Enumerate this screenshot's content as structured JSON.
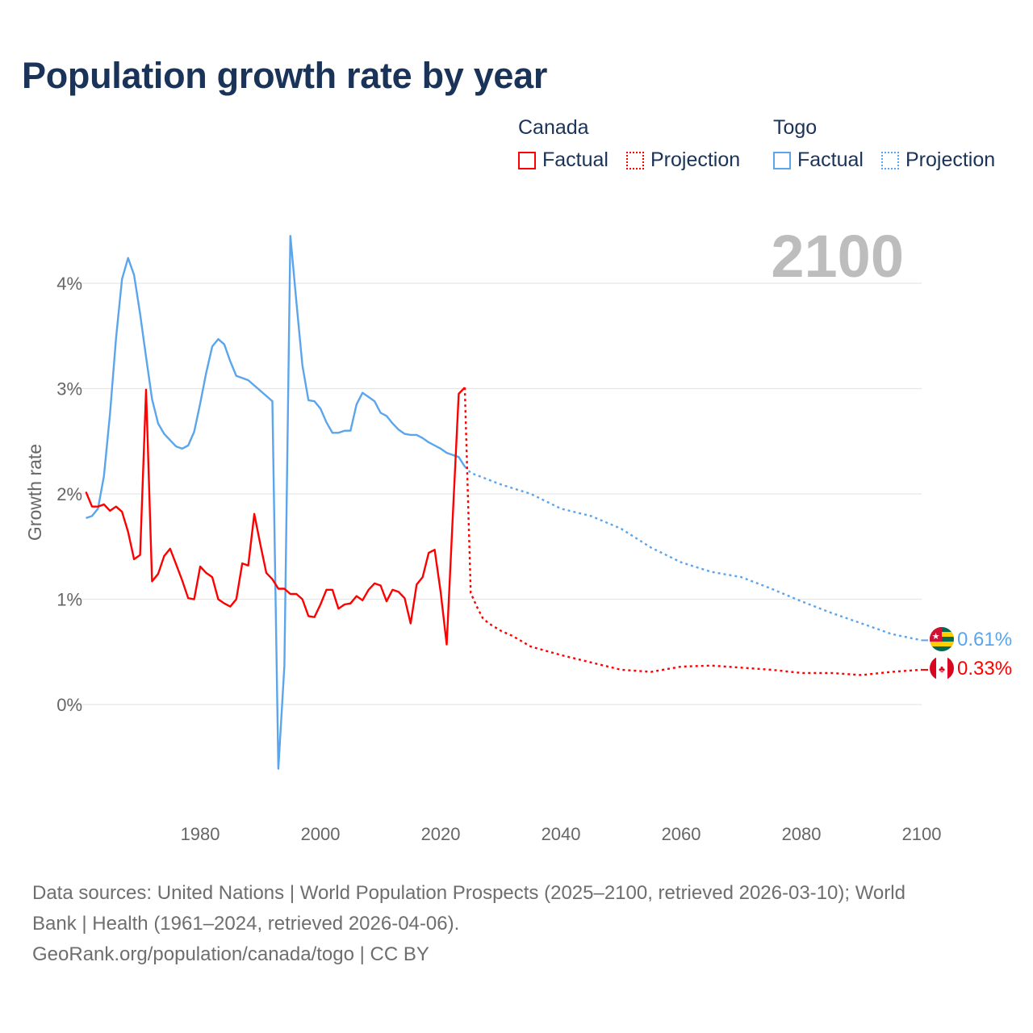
{
  "title": "Population growth rate by year",
  "legend": {
    "groups": [
      {
        "country": "Canada",
        "factual": "Factual",
        "projection": "Projection",
        "color": "#ff0000"
      },
      {
        "country": "Togo",
        "factual": "Factual",
        "projection": "Projection",
        "color": "#5aa5ec"
      }
    ]
  },
  "footer": {
    "line1": "Data sources: United Nations | World Population Prospects (2025–2100, retrieved 2026-03-10); World",
    "line2": "Bank | Health (1961–2024, retrieved 2026-04-06).",
    "line3": "GeoRank.org/population/canada/togo | CC BY"
  },
  "chart_data": {
    "type": "line",
    "title": "Population growth rate by year",
    "xlabel": "",
    "ylabel": "Growth rate",
    "current_year_label": "2100",
    "xlim": [
      1961,
      2100
    ],
    "ylim": [
      -0.9,
      4.6
    ],
    "x_ticks": [
      1980,
      2000,
      2020,
      2040,
      2060,
      2080,
      2100
    ],
    "x_tick_labels": [
      "1980",
      "2000",
      "2020",
      "2040",
      "2060",
      "2080",
      "2100"
    ],
    "y_ticks": [
      0,
      1,
      2,
      3,
      4
    ],
    "y_tick_labels": [
      "0%",
      "1%",
      "2%",
      "3%",
      "4%"
    ],
    "grid": true,
    "legend_position": "top-right",
    "series": [
      {
        "name": "Canada",
        "color": "#ff0000",
        "end_label": "0.33%",
        "flag": "canada-flag",
        "factual": {
          "x": [
            1961,
            1962,
            1963,
            1964,
            1965,
            1966,
            1967,
            1968,
            1969,
            1970,
            1971,
            1972,
            1973,
            1974,
            1975,
            1976,
            1977,
            1978,
            1979,
            1980,
            1981,
            1982,
            1983,
            1984,
            1985,
            1986,
            1987,
            1988,
            1989,
            1990,
            1991,
            1992,
            1993,
            1994,
            1995,
            1996,
            1997,
            1998,
            1999,
            2000,
            2001,
            2002,
            2003,
            2004,
            2005,
            2006,
            2007,
            2008,
            2009,
            2010,
            2011,
            2012,
            2013,
            2014,
            2015,
            2016,
            2017,
            2018,
            2019,
            2020,
            2021,
            2022,
            2023,
            2024
          ],
          "y": [
            2.02,
            1.88,
            1.88,
            1.9,
            1.84,
            1.88,
            1.83,
            1.64,
            1.38,
            1.42,
            2.99,
            1.17,
            1.24,
            1.41,
            1.48,
            1.33,
            1.18,
            1.01,
            1.0,
            1.31,
            1.25,
            1.21,
            1.0,
            0.96,
            0.93,
            1.0,
            1.34,
            1.32,
            1.81,
            1.52,
            1.25,
            1.19,
            1.1,
            1.1,
            1.05,
            1.05,
            1.0,
            0.84,
            0.83,
            0.95,
            1.09,
            1.09,
            0.91,
            0.95,
            0.96,
            1.03,
            0.99,
            1.09,
            1.15,
            1.13,
            0.98,
            1.09,
            1.07,
            1.01,
            0.77,
            1.14,
            1.21,
            1.44,
            1.47,
            1.07,
            0.57,
            1.78,
            2.95,
            3.01
          ]
        },
        "projection": {
          "x": [
            2024,
            2025,
            2026,
            2027,
            2028,
            2030,
            2032,
            2035,
            2040,
            2045,
            2050,
            2055,
            2060,
            2065,
            2070,
            2075,
            2080,
            2085,
            2090,
            2095,
            2100
          ],
          "y": [
            3.01,
            1.06,
            0.93,
            0.82,
            0.77,
            0.7,
            0.65,
            0.55,
            0.47,
            0.4,
            0.33,
            0.31,
            0.36,
            0.37,
            0.35,
            0.33,
            0.3,
            0.3,
            0.28,
            0.31,
            0.33
          ]
        }
      },
      {
        "name": "Togo",
        "color": "#5aa5ec",
        "end_label": "0.61%",
        "flag": "togo-flag",
        "factual": {
          "x": [
            1961,
            1962,
            1963,
            1964,
            1965,
            1966,
            1967,
            1968,
            1969,
            1970,
            1971,
            1972,
            1973,
            1974,
            1975,
            1976,
            1977,
            1978,
            1979,
            1980,
            1981,
            1982,
            1983,
            1984,
            1985,
            1986,
            1987,
            1988,
            1989,
            1990,
            1991,
            1992,
            1993,
            1994,
            1995,
            1996,
            1997,
            1998,
            1999,
            2000,
            2001,
            2002,
            2003,
            2004,
            2005,
            2006,
            2007,
            2008,
            2009,
            2010,
            2011,
            2012,
            2013,
            2014,
            2015,
            2016,
            2017,
            2018,
            2019,
            2020,
            2021,
            2022,
            2023,
            2024
          ],
          "y": [
            1.77,
            1.79,
            1.86,
            2.17,
            2.76,
            3.48,
            4.04,
            4.24,
            4.08,
            3.71,
            3.3,
            2.9,
            2.67,
            2.57,
            2.51,
            2.45,
            2.43,
            2.46,
            2.59,
            2.86,
            3.15,
            3.4,
            3.47,
            3.42,
            3.26,
            3.12,
            3.1,
            3.08,
            3.03,
            2.98,
            2.93,
            2.88,
            -0.61,
            0.37,
            4.45,
            3.82,
            3.22,
            2.89,
            2.88,
            2.81,
            2.68,
            2.58,
            2.58,
            2.6,
            2.6,
            2.85,
            2.96,
            2.92,
            2.88,
            2.77,
            2.74,
            2.67,
            2.61,
            2.57,
            2.56,
            2.56,
            2.53,
            2.49,
            2.46,
            2.43,
            2.39,
            2.37,
            2.35,
            2.26
          ]
        },
        "projection": {
          "x": [
            2024,
            2025,
            2030,
            2035,
            2040,
            2045,
            2050,
            2055,
            2060,
            2065,
            2070,
            2075,
            2080,
            2085,
            2090,
            2095,
            2100
          ],
          "y": [
            2.26,
            2.2,
            2.09,
            2.0,
            1.86,
            1.79,
            1.67,
            1.49,
            1.35,
            1.26,
            1.21,
            1.1,
            0.98,
            0.87,
            0.77,
            0.67,
            0.61
          ]
        }
      }
    ]
  }
}
